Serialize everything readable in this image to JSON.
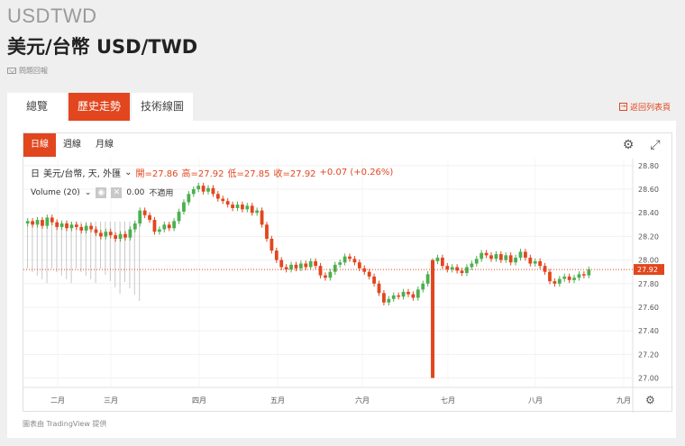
{
  "header": {
    "symbol": "USDTWD",
    "title": "美元/台幣 USD/TWD",
    "report": "問題回報"
  },
  "tabs": [
    {
      "label": "總覽",
      "active": false
    },
    {
      "label": "歷史走勢",
      "active": true
    },
    {
      "label": "技術線圖",
      "active": false
    }
  ],
  "back_link": "返回列表頁",
  "chart_toolbar": {
    "intervals": [
      {
        "label": "日線",
        "active": true
      },
      {
        "label": "週線",
        "active": false
      },
      {
        "label": "月線",
        "active": false
      }
    ],
    "settings_icon": "gear-icon",
    "fullscreen_icon": "expand-icon"
  },
  "legend": {
    "name": "美元/台幣, 天, 外匯",
    "open": "開=27.86",
    "high": "高=27.92",
    "low": "低=27.85",
    "close": "收=27.92",
    "change": "+0.07 (+0.26%)"
  },
  "volume": {
    "label": "Volume (20)",
    "value": "0.00",
    "na": "不適用"
  },
  "footer": "圖表由 TradingView 提供",
  "colors": {
    "up": "#4caf50",
    "down": "#e2461e",
    "accent": "#e2461e",
    "volume": "#c8c8c8"
  },
  "chart_data": {
    "type": "candlestick",
    "y_ticks": [
      "28.80",
      "28.60",
      "28.40",
      "28.20",
      "28.00",
      "27.80",
      "27.60",
      "27.40",
      "27.20",
      "27.00"
    ],
    "ylim": [
      26.92,
      28.86
    ],
    "x_ticks": [
      "二月",
      "三月",
      "四月",
      "五月",
      "六月",
      "七月",
      "八月",
      "九月"
    ],
    "last_price": "27.92",
    "closes": [
      28.33,
      28.3,
      28.34,
      28.29,
      28.36,
      28.32,
      28.28,
      28.31,
      28.27,
      28.3,
      28.28,
      28.25,
      28.29,
      28.26,
      28.23,
      28.2,
      28.24,
      28.21,
      28.18,
      28.22,
      28.19,
      28.26,
      28.31,
      28.42,
      28.38,
      28.34,
      28.24,
      28.26,
      28.3,
      28.27,
      28.33,
      28.41,
      28.49,
      28.56,
      28.6,
      28.63,
      28.58,
      28.61,
      28.56,
      28.52,
      28.5,
      28.47,
      28.44,
      28.47,
      28.43,
      28.46,
      28.4,
      28.42,
      28.3,
      28.18,
      28.08,
      28.0,
      27.94,
      27.92,
      27.96,
      27.93,
      27.97,
      27.94,
      27.99,
      27.95,
      27.87,
      27.85,
      27.9,
      27.96,
      27.98,
      28.03,
      28.01,
      27.98,
      27.93,
      27.9,
      27.86,
      27.8,
      27.72,
      27.64,
      27.67,
      27.7,
      27.69,
      27.73,
      27.71,
      27.68,
      27.75,
      27.8,
      27.88,
      27.99,
      28.02,
      27.95,
      27.92,
      27.94,
      27.91,
      27.89,
      27.94,
      27.97,
      28.01,
      28.06,
      28.04,
      28.01,
      28.05,
      28.0,
      28.04,
      27.98,
      28.02,
      28.07,
      28.02,
      27.97,
      27.99,
      27.95,
      27.9,
      27.82,
      27.8,
      27.84,
      27.86,
      27.83,
      27.85,
      27.88,
      27.87,
      27.92
    ],
    "spike": {
      "high": 28.0,
      "low": 27.0
    }
  }
}
